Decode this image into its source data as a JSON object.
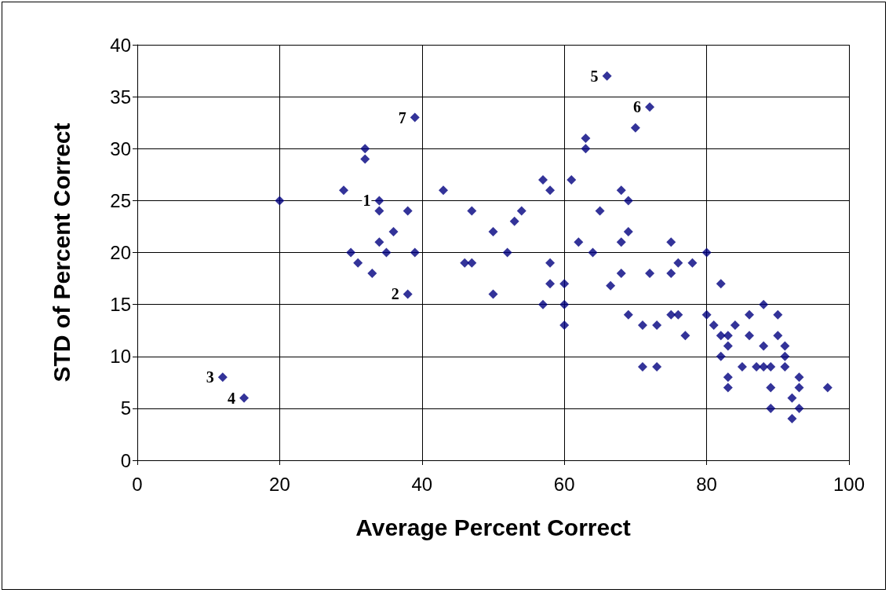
{
  "chart_data": {
    "type": "scatter",
    "xlabel": "Average Percent Correct",
    "ylabel": "STD of Percent Correct",
    "x": [
      20,
      29,
      30,
      31,
      32,
      32,
      33,
      34,
      34,
      34,
      35,
      36,
      38,
      38,
      39,
      39,
      43,
      46,
      47,
      47,
      50,
      50,
      52,
      53,
      54,
      57,
      57,
      58,
      58,
      58,
      60,
      60,
      60,
      61,
      62,
      63,
      63,
      64,
      65,
      66,
      66.5,
      68,
      68,
      68,
      69,
      69,
      69,
      70,
      71,
      71,
      72,
      72,
      73,
      73,
      75,
      75,
      75,
      76,
      76,
      77,
      78,
      80,
      80,
      81,
      82,
      82,
      82,
      83,
      83,
      83,
      83,
      84,
      85,
      86,
      86,
      87,
      88,
      88,
      88,
      89,
      89,
      89,
      90,
      90,
      91,
      91,
      91,
      92,
      92,
      93,
      93,
      93,
      97,
      12,
      15
    ],
    "series": [
      {
        "color": "#000080",
        "values": [
          25,
          26,
          20,
          19,
          30,
          29,
          18,
          25,
          24,
          21,
          20,
          22,
          24,
          16,
          20,
          33,
          26,
          19,
          19,
          24,
          22,
          16,
          20,
          23,
          24,
          27,
          15,
          26,
          19,
          17,
          17,
          15,
          13,
          27,
          21,
          31,
          30,
          20,
          24,
          37,
          16.8,
          26,
          21,
          18,
          25,
          22,
          14,
          32,
          13,
          9,
          34,
          18,
          13,
          9,
          21,
          18,
          14,
          19,
          14,
          12,
          19,
          20,
          14,
          13,
          17,
          12,
          10,
          12,
          11,
          8,
          7,
          13,
          9,
          14,
          12,
          9,
          15,
          11,
          9,
          9,
          7,
          5,
          14,
          12,
          11,
          10,
          9,
          6,
          4,
          8,
          7,
          5,
          7,
          8,
          6
        ]
      }
    ],
    "xlim": [
      0,
      100
    ],
    "xticks": [
      0,
      20,
      40,
      60,
      80,
      100
    ],
    "ylim": [
      0,
      40
    ],
    "yticks": [
      0,
      5,
      10,
      15,
      20,
      25,
      30,
      35,
      40
    ],
    "grid": true,
    "marker": "diamond",
    "annotations": [
      {
        "text": "1",
        "x": 34,
        "y": 25
      },
      {
        "text": "2",
        "x": 38,
        "y": 16
      },
      {
        "text": "3",
        "x": 12,
        "y": 8
      },
      {
        "text": "4",
        "x": 15,
        "y": 6
      },
      {
        "text": "5",
        "x": 66,
        "y": 37
      },
      {
        "text": "6",
        "x": 72,
        "y": 34
      },
      {
        "text": "7",
        "x": 39,
        "y": 33
      }
    ]
  }
}
